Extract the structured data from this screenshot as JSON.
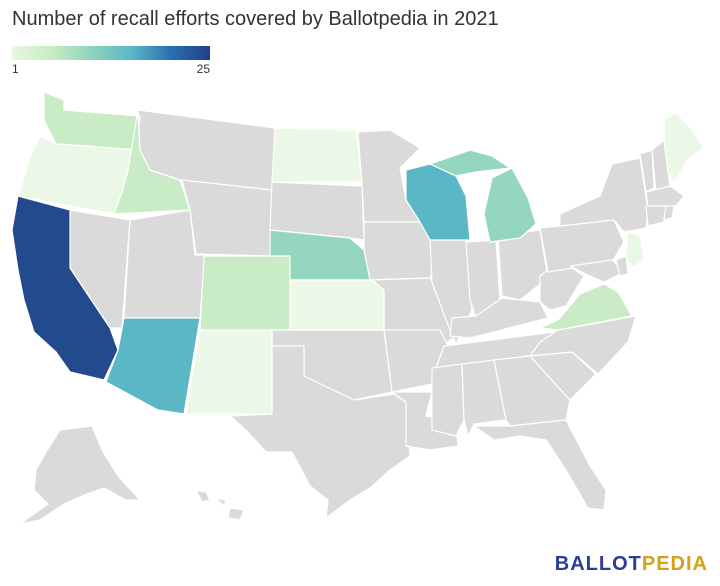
{
  "title": "Number of recall efforts covered by Ballotpedia in 2021",
  "legend": {
    "min_label": "1",
    "max_label": "25"
  },
  "colors": {
    "no_data": "#dadada",
    "scale": [
      "#ebf8e7",
      "#c9ecc6",
      "#95d6bf",
      "#5bb6c5",
      "#224a8c"
    ]
  },
  "logo": {
    "part1": "BALLOT",
    "part2": "PEDIA"
  }
}
